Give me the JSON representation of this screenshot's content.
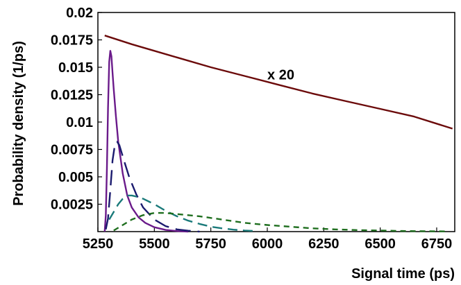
{
  "chart_data": {
    "type": "line",
    "title": "",
    "xlabel": "Signal time (ps)",
    "ylabel": "Probability density (1/ps)",
    "xlim": [
      5250,
      6830
    ],
    "ylim": [
      0,
      0.02
    ],
    "xticks": [
      5250,
      5500,
      5750,
      6000,
      6250,
      6500,
      6750
    ],
    "xtick_labels": [
      "5250",
      "5500",
      "5750",
      "6000",
      "6250",
      "6500",
      "6750"
    ],
    "yticks": [
      0.0025,
      0.005,
      0.0075,
      0.01,
      0.0125,
      0.015,
      0.0175,
      0.02
    ],
    "ytick_labels": [
      "0.0025",
      "0.005",
      "0.0075",
      "0.01",
      "0.0125",
      "0.015",
      "0.0175",
      "0.02"
    ],
    "grid": false,
    "legend": "none",
    "annotations": [
      {
        "text": "x 20",
        "x": 6060,
        "y": 0.0139
      }
    ],
    "series": [
      {
        "color": "#6b0a0a",
        "dash": "solid",
        "x": [
          5280,
          5400,
          5500,
          5600,
          5750,
          5900,
          6050,
          6200,
          6350,
          6500,
          6650,
          6820
        ],
        "y": [
          0.0179,
          0.0171,
          0.0165,
          0.0159,
          0.015,
          0.0142,
          0.0134,
          0.0126,
          0.0119,
          0.0112,
          0.0105,
          0.0094
        ]
      },
      {
        "color": "#6a1a8a",
        "dash": "solid",
        "x": [
          5280,
          5285,
          5290,
          5295,
          5300,
          5305,
          5310,
          5315,
          5320,
          5330,
          5340,
          5360,
          5380,
          5400,
          5430,
          5460,
          5500,
          5550,
          5600,
          5650
        ],
        "y": [
          0,
          0.0015,
          0.0058,
          0.0113,
          0.0155,
          0.0165,
          0.016,
          0.0145,
          0.013,
          0.0105,
          0.0082,
          0.0053,
          0.0033,
          0.0022,
          0.0013,
          0.0008,
          0.0004,
          0.00015,
          5e-05,
          0
        ]
      },
      {
        "color": "#1a1a6e",
        "dash": "longdash",
        "x": [
          5285,
          5295,
          5305,
          5315,
          5325,
          5335,
          5345,
          5355,
          5370,
          5390,
          5420,
          5450,
          5500,
          5550,
          5600,
          5650,
          5700
        ],
        "y": [
          0.0002,
          0.0012,
          0.0038,
          0.0065,
          0.0079,
          0.0082,
          0.0079,
          0.0072,
          0.0062,
          0.0049,
          0.0034,
          0.0022,
          0.0011,
          0.0005,
          0.0002,
          8e-05,
          0
        ]
      },
      {
        "color": "#1a7a7a",
        "dash": "dash",
        "x": [
          5300,
          5320,
          5340,
          5360,
          5380,
          5400,
          5420,
          5450,
          5500,
          5550,
          5600,
          5650,
          5700,
          5750,
          5800,
          5850,
          5900,
          5950
        ],
        "y": [
          0.0011,
          0.0018,
          0.0025,
          0.003,
          0.0033,
          0.0033,
          0.0032,
          0.003,
          0.0025,
          0.0019,
          0.0014,
          0.001,
          0.0007,
          0.00045,
          0.0003,
          0.00018,
          0.0001,
          5e-05
        ]
      },
      {
        "color": "#1e6e1e",
        "dash": "shortdash",
        "x": [
          5320,
          5360,
          5400,
          5450,
          5500,
          5550,
          5600,
          5650,
          5700,
          5800,
          5900,
          6000,
          6100,
          6200,
          6300,
          6400,
          6500,
          6600,
          6700,
          6800
        ],
        "y": [
          0.0001,
          0.0006,
          0.0011,
          0.0015,
          0.0017,
          0.0017,
          0.0016,
          0.0015,
          0.0014,
          0.0011,
          0.0008,
          0.0006,
          0.00045,
          0.0003,
          0.0002,
          0.00014,
          0.0001,
          6e-05,
          4e-05,
          2e-05
        ]
      }
    ]
  }
}
